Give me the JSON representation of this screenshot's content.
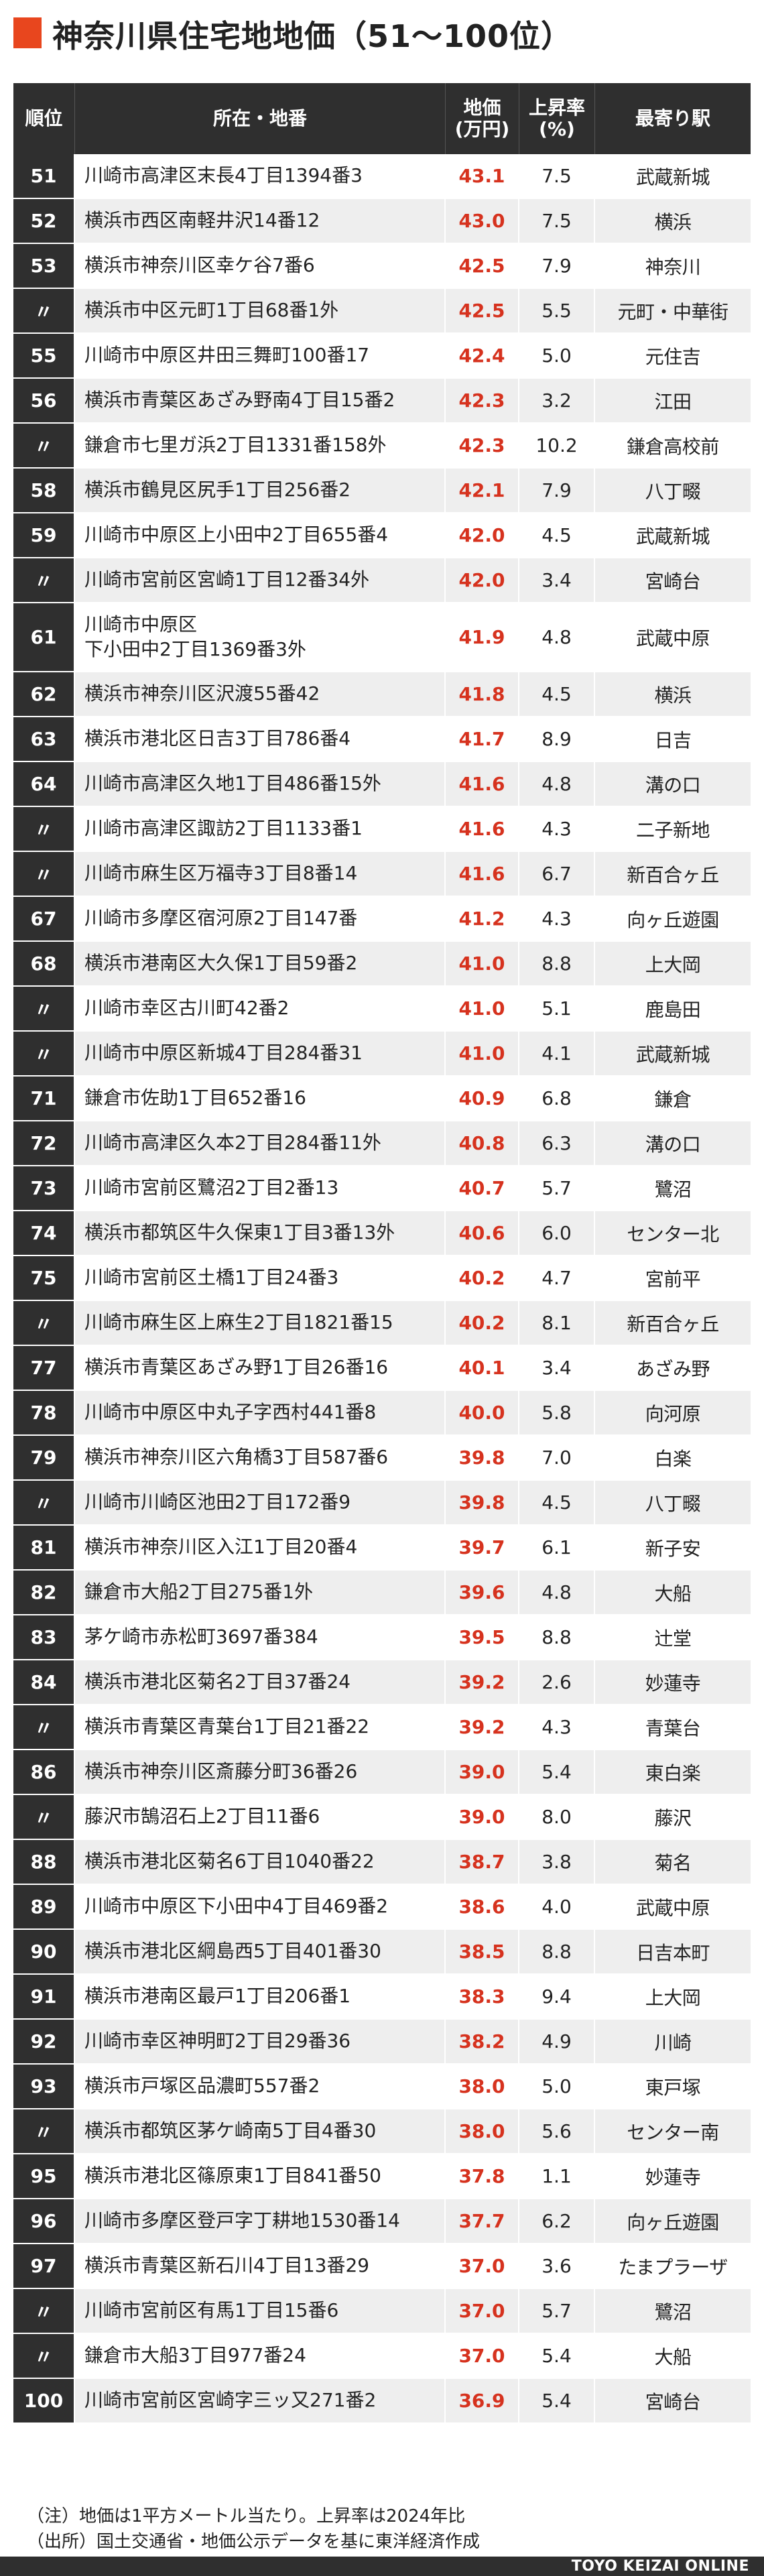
{
  "title": "神奈川県住宅地地価（51〜100位）",
  "accent_color": "#e8461e",
  "price_color": "#d6321e",
  "header": {
    "rank": "順位",
    "address": "所在・地番",
    "price": "地価\n(万円)",
    "rate": "上昇率\n(%)",
    "station": "最寄り駅"
  },
  "rows": [
    {
      "rank": "51",
      "address": "川崎市高津区末長4丁目1394番3",
      "price": "43.1",
      "rate": "7.5",
      "station": "武蔵新城"
    },
    {
      "rank": "52",
      "address": "横浜市西区南軽井沢14番12",
      "price": "43.0",
      "rate": "7.5",
      "station": "横浜"
    },
    {
      "rank": "53",
      "address": "横浜市神奈川区幸ケ谷7番6",
      "price": "42.5",
      "rate": "7.9",
      "station": "神奈川"
    },
    {
      "rank": "〃",
      "address": "横浜市中区元町1丁目68番1外",
      "price": "42.5",
      "rate": "5.5",
      "station": "元町・中華街"
    },
    {
      "rank": "55",
      "address": "川崎市中原区井田三舞町100番17",
      "price": "42.4",
      "rate": "5.0",
      "station": "元住吉"
    },
    {
      "rank": "56",
      "address": "横浜市青葉区あざみ野南4丁目15番2",
      "price": "42.3",
      "rate": "3.2",
      "station": "江田"
    },
    {
      "rank": "〃",
      "address": "鎌倉市七里ガ浜2丁目1331番158外",
      "price": "42.3",
      "rate": "10.2",
      "station": "鎌倉高校前"
    },
    {
      "rank": "58",
      "address": "横浜市鶴見区尻手1丁目256番2",
      "price": "42.1",
      "rate": "7.9",
      "station": "八丁畷"
    },
    {
      "rank": "59",
      "address": "川崎市中原区上小田中2丁目655番4",
      "price": "42.0",
      "rate": "4.5",
      "station": "武蔵新城"
    },
    {
      "rank": "〃",
      "address": "川崎市宮前区宮崎1丁目12番34外",
      "price": "42.0",
      "rate": "3.4",
      "station": "宮崎台"
    },
    {
      "rank": "61",
      "address": "川崎市中原区\n下小田中2丁目1369番3外",
      "price": "41.9",
      "rate": "4.8",
      "station": "武蔵中原"
    },
    {
      "rank": "62",
      "address": "横浜市神奈川区沢渡55番42",
      "price": "41.8",
      "rate": "4.5",
      "station": "横浜"
    },
    {
      "rank": "63",
      "address": "横浜市港北区日吉3丁目786番4",
      "price": "41.7",
      "rate": "8.9",
      "station": "日吉"
    },
    {
      "rank": "64",
      "address": "川崎市高津区久地1丁目486番15外",
      "price": "41.6",
      "rate": "4.8",
      "station": "溝の口"
    },
    {
      "rank": "〃",
      "address": "川崎市高津区諏訪2丁目1133番1",
      "price": "41.6",
      "rate": "4.3",
      "station": "二子新地"
    },
    {
      "rank": "〃",
      "address": "川崎市麻生区万福寺3丁目8番14",
      "price": "41.6",
      "rate": "6.7",
      "station": "新百合ヶ丘"
    },
    {
      "rank": "67",
      "address": "川崎市多摩区宿河原2丁目147番",
      "price": "41.2",
      "rate": "4.3",
      "station": "向ヶ丘遊園"
    },
    {
      "rank": "68",
      "address": "横浜市港南区大久保1丁目59番2",
      "price": "41.0",
      "rate": "8.8",
      "station": "上大岡"
    },
    {
      "rank": "〃",
      "address": "川崎市幸区古川町42番2",
      "price": "41.0",
      "rate": "5.1",
      "station": "鹿島田"
    },
    {
      "rank": "〃",
      "address": "川崎市中原区新城4丁目284番31",
      "price": "41.0",
      "rate": "4.1",
      "station": "武蔵新城"
    },
    {
      "rank": "71",
      "address": "鎌倉市佐助1丁目652番16",
      "price": "40.9",
      "rate": "6.8",
      "station": "鎌倉"
    },
    {
      "rank": "72",
      "address": "川崎市高津区久本2丁目284番11外",
      "price": "40.8",
      "rate": "6.3",
      "station": "溝の口"
    },
    {
      "rank": "73",
      "address": "川崎市宮前区鷺沼2丁目2番13",
      "price": "40.7",
      "rate": "5.7",
      "station": "鷺沼"
    },
    {
      "rank": "74",
      "address": "横浜市都筑区牛久保東1丁目3番13外",
      "price": "40.6",
      "rate": "6.0",
      "station": "センター北"
    },
    {
      "rank": "75",
      "address": "川崎市宮前区土橋1丁目24番3",
      "price": "40.2",
      "rate": "4.7",
      "station": "宮前平"
    },
    {
      "rank": "〃",
      "address": "川崎市麻生区上麻生2丁目1821番15",
      "price": "40.2",
      "rate": "8.1",
      "station": "新百合ヶ丘"
    },
    {
      "rank": "77",
      "address": "横浜市青葉区あざみ野1丁目26番16",
      "price": "40.1",
      "rate": "3.4",
      "station": "あざみ野"
    },
    {
      "rank": "78",
      "address": "川崎市中原区中丸子字西村441番8",
      "price": "40.0",
      "rate": "5.8",
      "station": "向河原"
    },
    {
      "rank": "79",
      "address": "横浜市神奈川区六角橋3丁目587番6",
      "price": "39.8",
      "rate": "7.0",
      "station": "白楽"
    },
    {
      "rank": "〃",
      "address": "川崎市川崎区池田2丁目172番9",
      "price": "39.8",
      "rate": "4.5",
      "station": "八丁畷"
    },
    {
      "rank": "81",
      "address": "横浜市神奈川区入江1丁目20番4",
      "price": "39.7",
      "rate": "6.1",
      "station": "新子安"
    },
    {
      "rank": "82",
      "address": "鎌倉市大船2丁目275番1外",
      "price": "39.6",
      "rate": "4.8",
      "station": "大船"
    },
    {
      "rank": "83",
      "address": "茅ケ崎市赤松町3697番384",
      "price": "39.5",
      "rate": "8.8",
      "station": "辻堂"
    },
    {
      "rank": "84",
      "address": "横浜市港北区菊名2丁目37番24",
      "price": "39.2",
      "rate": "2.6",
      "station": "妙蓮寺"
    },
    {
      "rank": "〃",
      "address": "横浜市青葉区青葉台1丁目21番22",
      "price": "39.2",
      "rate": "4.3",
      "station": "青葉台"
    },
    {
      "rank": "86",
      "address": "横浜市神奈川区斎藤分町36番26",
      "price": "39.0",
      "rate": "5.4",
      "station": "東白楽"
    },
    {
      "rank": "〃",
      "address": "藤沢市鵠沼石上2丁目11番6",
      "price": "39.0",
      "rate": "8.0",
      "station": "藤沢"
    },
    {
      "rank": "88",
      "address": "横浜市港北区菊名6丁目1040番22",
      "price": "38.7",
      "rate": "3.8",
      "station": "菊名"
    },
    {
      "rank": "89",
      "address": "川崎市中原区下小田中4丁目469番2",
      "price": "38.6",
      "rate": "4.0",
      "station": "武蔵中原"
    },
    {
      "rank": "90",
      "address": "横浜市港北区綱島西5丁目401番30",
      "price": "38.5",
      "rate": "8.8",
      "station": "日吉本町"
    },
    {
      "rank": "91",
      "address": "横浜市港南区最戸1丁目206番1",
      "price": "38.3",
      "rate": "9.4",
      "station": "上大岡"
    },
    {
      "rank": "92",
      "address": "川崎市幸区神明町2丁目29番36",
      "price": "38.2",
      "rate": "4.9",
      "station": "川崎"
    },
    {
      "rank": "93",
      "address": "横浜市戸塚区品濃町557番2",
      "price": "38.0",
      "rate": "5.0",
      "station": "東戸塚"
    },
    {
      "rank": "〃",
      "address": "横浜市都筑区茅ケ崎南5丁目4番30",
      "price": "38.0",
      "rate": "5.6",
      "station": "センター南"
    },
    {
      "rank": "95",
      "address": "横浜市港北区篠原東1丁目841番50",
      "price": "37.8",
      "rate": "1.1",
      "station": "妙蓮寺"
    },
    {
      "rank": "96",
      "address": "川崎市多摩区登戸字丁耕地1530番14",
      "price": "37.7",
      "rate": "6.2",
      "station": "向ヶ丘遊園"
    },
    {
      "rank": "97",
      "address": "横浜市青葉区新石川4丁目13番29",
      "price": "37.0",
      "rate": "3.6",
      "station": "たまプラーザ"
    },
    {
      "rank": "〃",
      "address": "川崎市宮前区有馬1丁目15番6",
      "price": "37.0",
      "rate": "5.7",
      "station": "鷺沼"
    },
    {
      "rank": "〃",
      "address": "鎌倉市大船3丁目977番24",
      "price": "37.0",
      "rate": "5.4",
      "station": "大船"
    },
    {
      "rank": "100",
      "address": "川崎市宮前区宮崎字三ッ又271番2",
      "price": "36.9",
      "rate": "5.4",
      "station": "宮崎台"
    }
  ],
  "notes": {
    "note1": "（注）地価は1平方メートル当たり。上昇率は2024年比",
    "note2": "（出所）国土交通省・地価公示データを基に東洋経済作成"
  },
  "footer": "TOYO KEIZAI ONLINE"
}
